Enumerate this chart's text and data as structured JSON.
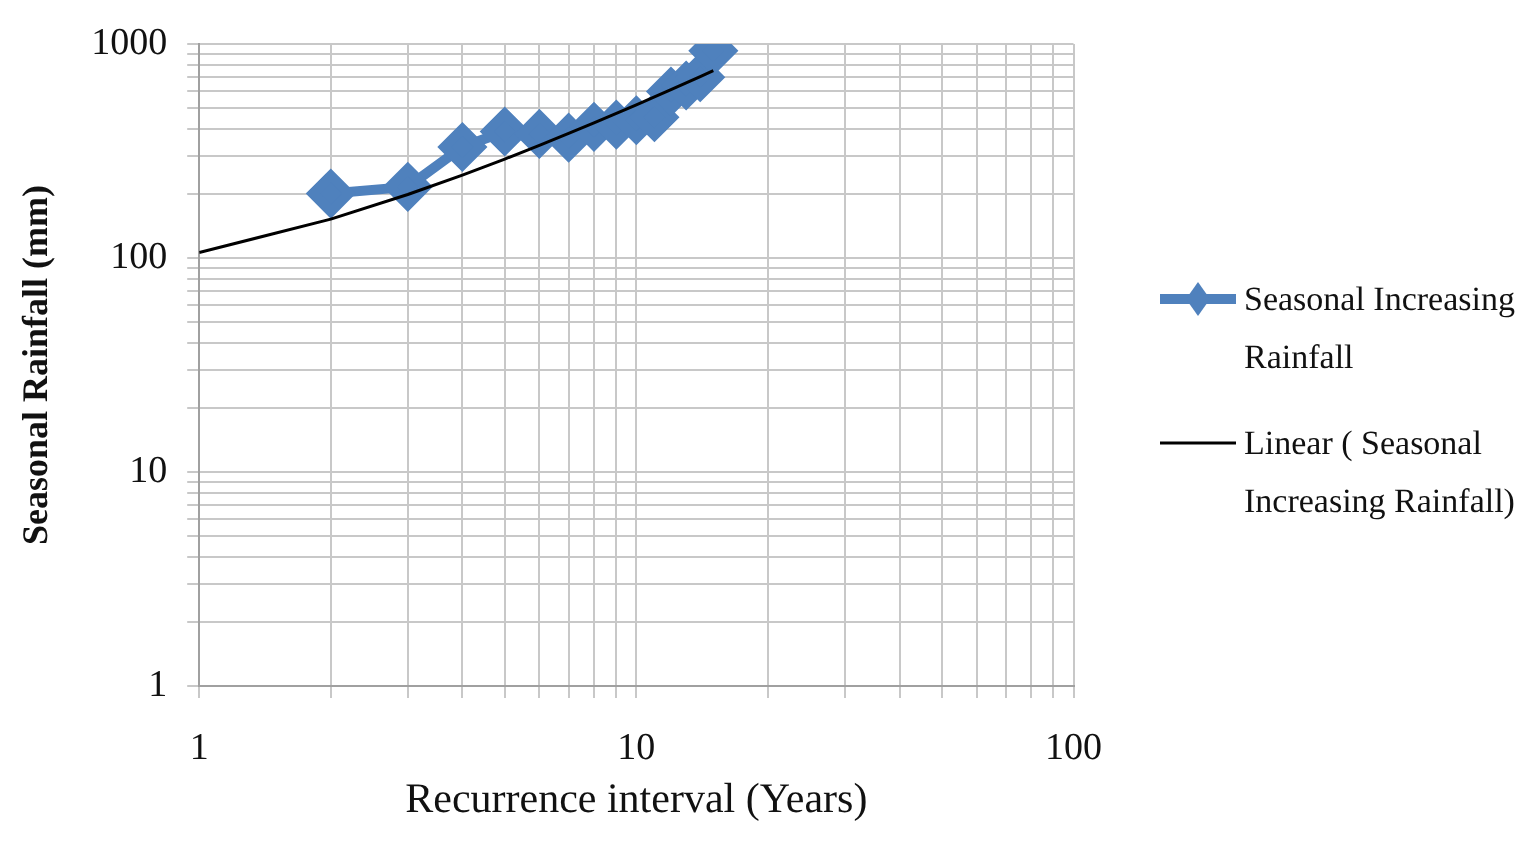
{
  "chart_data": {
    "type": "line",
    "xlabel": "Recurrence interval (Years)",
    "ylabel": "Seasonal Rainfall (mm)",
    "log": "xy",
    "grid": true,
    "legend": "right",
    "marker": "diamond",
    "xlim": [
      1,
      100
    ],
    "ylim": [
      1,
      1000
    ],
    "xticks": [
      1,
      {
        "value": 2,
        "label": null
      },
      {
        "value": 3,
        "label": null
      },
      {
        "value": 4,
        "label": null
      },
      {
        "value": 5,
        "label": null
      },
      {
        "value": 6,
        "label": null
      },
      {
        "value": 7,
        "label": null
      },
      {
        "value": 8,
        "label": null
      },
      {
        "value": 9,
        "label": null
      },
      10,
      {
        "value": 20,
        "label": null
      },
      {
        "value": 30,
        "label": null
      },
      {
        "value": 40,
        "label": null
      },
      {
        "value": 50,
        "label": null
      },
      {
        "value": 60,
        "label": null
      },
      {
        "value": 70,
        "label": null
      },
      {
        "value": 80,
        "label": null
      },
      {
        "value": 90,
        "label": null
      },
      100
    ],
    "yticks": [
      1,
      {
        "value": 2,
        "label": null
      },
      {
        "value": 3,
        "label": null
      },
      {
        "value": 4,
        "label": null
      },
      {
        "value": 5,
        "label": null
      },
      {
        "value": 6,
        "label": null
      },
      {
        "value": 7,
        "label": null
      },
      {
        "value": 8,
        "label": null
      },
      {
        "value": 9,
        "label": null
      },
      10,
      {
        "value": 20,
        "label": null
      },
      {
        "value": 30,
        "label": null
      },
      {
        "value": 40,
        "label": null
      },
      {
        "value": 50,
        "label": null
      },
      {
        "value": 60,
        "label": null
      },
      {
        "value": 70,
        "label": null
      },
      {
        "value": 80,
        "label": null
      },
      {
        "value": 90,
        "label": null
      },
      100,
      {
        "value": 200,
        "label": null
      },
      {
        "value": 300,
        "label": null
      },
      {
        "value": 400,
        "label": null
      },
      {
        "value": 500,
        "label": null
      },
      {
        "value": 600,
        "label": null
      },
      {
        "value": 700,
        "label": null
      },
      {
        "value": 800,
        "label": null
      },
      {
        "value": 900,
        "label": null
      },
      1000
    ],
    "series": [
      {
        "name": "Seasonal Increasing Rainfall",
        "color": "#4f81bd",
        "x": [
          2,
          3,
          4,
          5,
          6,
          7,
          8,
          9,
          10,
          11,
          12,
          13,
          14,
          15
        ],
        "values": [
          200,
          215,
          330,
          390,
          380,
          365,
          410,
          420,
          440,
          455,
          600,
          640,
          700,
          930
        ]
      },
      {
        "name": "Linear ( Seasonal Increasing Rainfall)",
        "color": "#000000",
        "marker": "none",
        "x": [
          1,
          2,
          3,
          4,
          5,
          6,
          7,
          8,
          9,
          10,
          11,
          12,
          13,
          14,
          15
        ],
        "values": [
          106,
          152,
          198,
          244,
          290,
          336,
          382,
          428,
          474,
          520,
          566,
          612,
          658,
          704,
          750
        ]
      }
    ]
  }
}
